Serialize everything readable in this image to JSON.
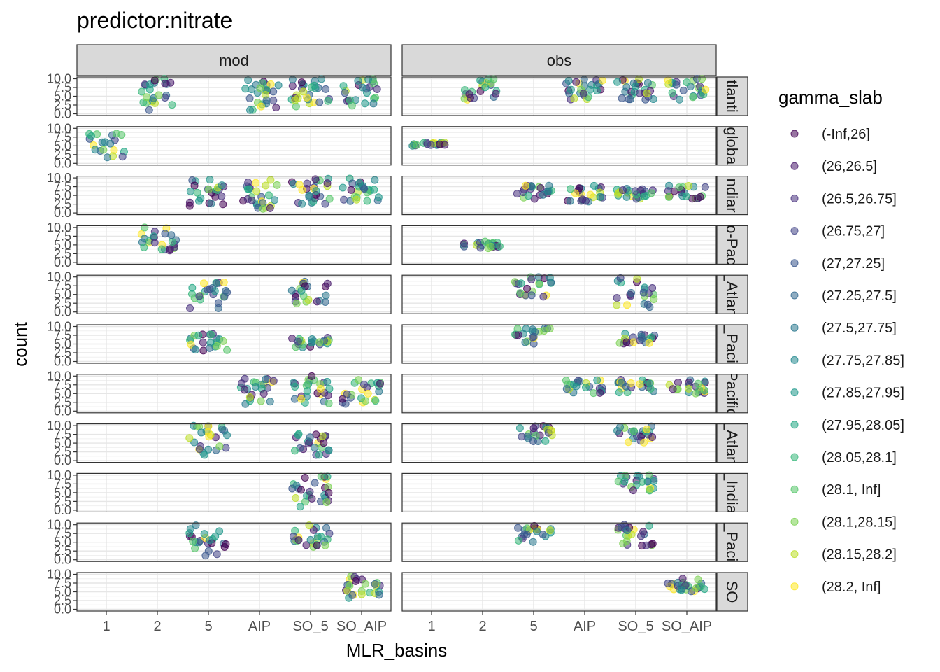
{
  "chart_data": {
    "type": "scatter",
    "title": "predictor:nitrate",
    "xlabel": "MLR_basins",
    "ylabel": "count",
    "x_categories": [
      "1",
      "2",
      "5",
      "AIP",
      "SO_5",
      "SO_AIP"
    ],
    "y_ticks": [
      "0.0",
      "2.5",
      "5.0",
      "7.5",
      "10.0"
    ],
    "ylim": [
      0,
      10
    ],
    "grid": true,
    "jitter": true,
    "point_alpha": 0.55,
    "facet_cols": [
      "mod",
      "obs"
    ],
    "facet_rows": [
      "tlanti",
      "globa",
      "ndiar",
      "o-Pac",
      "_Atlan",
      "_Paci",
      "Pacific",
      "_Atlan",
      "_India",
      "_Paci",
      "SO"
    ],
    "legend": {
      "title": "gamma_slab",
      "position": "right",
      "items": [
        {
          "label": "(-Inf,26]",
          "color": "#440154"
        },
        {
          "label": "(26,26.5]",
          "color": "#481A6C"
        },
        {
          "label": "(26.5,26.75]",
          "color": "#472F7D"
        },
        {
          "label": "(26.75,27]",
          "color": "#414487"
        },
        {
          "label": "(27,27.25]",
          "color": "#39568C"
        },
        {
          "label": "(27.25,27.5]",
          "color": "#31688E"
        },
        {
          "label": "(27.5,27.75]",
          "color": "#2A788E"
        },
        {
          "label": "(27.75,27.85]",
          "color": "#23888E"
        },
        {
          "label": "(27.85,27.95]",
          "color": "#1F988B"
        },
        {
          "label": "(27.95,28.05]",
          "color": "#22A884"
        },
        {
          "label": "(28.05,28.1]",
          "color": "#35B779"
        },
        {
          "label": "(28.1, Inf]",
          "color": "#54C568"
        },
        {
          "label": "(28.1,28.15]",
          "color": "#7AD151"
        },
        {
          "label": "(28.15,28.2]",
          "color": "#BBDF27"
        },
        {
          "label": "(28.2, Inf]",
          "color": "#FDE725"
        }
      ]
    },
    "clusters": [
      {
        "row": 0,
        "col": 0,
        "x": 1,
        "y_min": 1,
        "y_max": 10,
        "n": 24
      },
      {
        "row": 0,
        "col": 0,
        "x": 3,
        "y_min": 1,
        "y_max": 10,
        "n": 26
      },
      {
        "row": 0,
        "col": 0,
        "x": 4,
        "y_min": 1,
        "y_max": 10,
        "n": 28
      },
      {
        "row": 0,
        "col": 0,
        "x": 5,
        "y_min": 2,
        "y_max": 10,
        "n": 24
      },
      {
        "row": 0,
        "col": 1,
        "x": 1,
        "y_min": 4,
        "y_max": 10,
        "n": 22
      },
      {
        "row": 0,
        "col": 1,
        "x": 3,
        "y_min": 4,
        "y_max": 10,
        "n": 26
      },
      {
        "row": 0,
        "col": 1,
        "x": 4,
        "y_min": 4,
        "y_max": 10,
        "n": 26
      },
      {
        "row": 0,
        "col": 1,
        "x": 5,
        "y_min": 4,
        "y_max": 10,
        "n": 24
      },
      {
        "row": 1,
        "col": 0,
        "x": 0,
        "y_min": 1,
        "y_max": 9,
        "n": 20
      },
      {
        "row": 1,
        "col": 1,
        "x": 0,
        "y_min": 5,
        "y_max": 6,
        "n": 20
      },
      {
        "row": 2,
        "col": 0,
        "x": 2,
        "y_min": 2,
        "y_max": 10,
        "n": 24
      },
      {
        "row": 2,
        "col": 0,
        "x": 3,
        "y_min": 1,
        "y_max": 10,
        "n": 26
      },
      {
        "row": 2,
        "col": 0,
        "x": 4,
        "y_min": 2,
        "y_max": 10,
        "n": 26
      },
      {
        "row": 2,
        "col": 0,
        "x": 5,
        "y_min": 3,
        "y_max": 10,
        "n": 24
      },
      {
        "row": 2,
        "col": 1,
        "x": 2,
        "y_min": 4,
        "y_max": 8,
        "n": 22
      },
      {
        "row": 2,
        "col": 1,
        "x": 3,
        "y_min": 3,
        "y_max": 8,
        "n": 24
      },
      {
        "row": 2,
        "col": 1,
        "x": 4,
        "y_min": 4,
        "y_max": 7,
        "n": 24
      },
      {
        "row": 2,
        "col": 1,
        "x": 5,
        "y_min": 4,
        "y_max": 8,
        "n": 22
      },
      {
        "row": 3,
        "col": 0,
        "x": 1,
        "y_min": 3,
        "y_max": 10,
        "n": 24
      },
      {
        "row": 3,
        "col": 1,
        "x": 1,
        "y_min": 4,
        "y_max": 6,
        "n": 22
      },
      {
        "row": 4,
        "col": 0,
        "x": 2,
        "y_min": 1,
        "y_max": 10,
        "n": 24
      },
      {
        "row": 4,
        "col": 0,
        "x": 4,
        "y_min": 2,
        "y_max": 9,
        "n": 22
      },
      {
        "row": 4,
        "col": 1,
        "x": 2,
        "y_min": 4,
        "y_max": 10,
        "n": 22
      },
      {
        "row": 4,
        "col": 1,
        "x": 4,
        "y_min": 1,
        "y_max": 10,
        "n": 22
      },
      {
        "row": 5,
        "col": 0,
        "x": 2,
        "y_min": 3,
        "y_max": 8,
        "n": 22
      },
      {
        "row": 5,
        "col": 0,
        "x": 4,
        "y_min": 4,
        "y_max": 7,
        "n": 22
      },
      {
        "row": 5,
        "col": 1,
        "x": 2,
        "y_min": 5,
        "y_max": 10,
        "n": 20
      },
      {
        "row": 5,
        "col": 1,
        "x": 4,
        "y_min": 5,
        "y_max": 8,
        "n": 20
      },
      {
        "row": 6,
        "col": 0,
        "x": 3,
        "y_min": 2,
        "y_max": 10,
        "n": 24
      },
      {
        "row": 6,
        "col": 0,
        "x": 4,
        "y_min": 2,
        "y_max": 10,
        "n": 26
      },
      {
        "row": 6,
        "col": 0,
        "x": 5,
        "y_min": 2,
        "y_max": 10,
        "n": 24
      },
      {
        "row": 6,
        "col": 1,
        "x": 3,
        "y_min": 5,
        "y_max": 9,
        "n": 22
      },
      {
        "row": 6,
        "col": 1,
        "x": 4,
        "y_min": 5,
        "y_max": 9,
        "n": 22
      },
      {
        "row": 6,
        "col": 1,
        "x": 5,
        "y_min": 5,
        "y_max": 9,
        "n": 22
      },
      {
        "row": 7,
        "col": 0,
        "x": 2,
        "y_min": 1,
        "y_max": 10,
        "n": 26
      },
      {
        "row": 7,
        "col": 0,
        "x": 4,
        "y_min": 1,
        "y_max": 8,
        "n": 24
      },
      {
        "row": 7,
        "col": 1,
        "x": 2,
        "y_min": 5,
        "y_max": 10,
        "n": 22
      },
      {
        "row": 7,
        "col": 1,
        "x": 4,
        "y_min": 5,
        "y_max": 10,
        "n": 22
      },
      {
        "row": 8,
        "col": 0,
        "x": 4,
        "y_min": 1,
        "y_max": 10,
        "n": 26
      },
      {
        "row": 8,
        "col": 1,
        "x": 4,
        "y_min": 5,
        "y_max": 10,
        "n": 22
      },
      {
        "row": 9,
        "col": 0,
        "x": 2,
        "y_min": 1,
        "y_max": 10,
        "n": 24
      },
      {
        "row": 9,
        "col": 0,
        "x": 4,
        "y_min": 3,
        "y_max": 10,
        "n": 24
      },
      {
        "row": 9,
        "col": 1,
        "x": 2,
        "y_min": 5,
        "y_max": 10,
        "n": 22
      },
      {
        "row": 9,
        "col": 1,
        "x": 4,
        "y_min": 4,
        "y_max": 10,
        "n": 24
      },
      {
        "row": 10,
        "col": 0,
        "x": 5,
        "y_min": 3,
        "y_max": 10,
        "n": 26
      },
      {
        "row": 10,
        "col": 1,
        "x": 5,
        "y_min": 5,
        "y_max": 9,
        "n": 26
      }
    ]
  }
}
